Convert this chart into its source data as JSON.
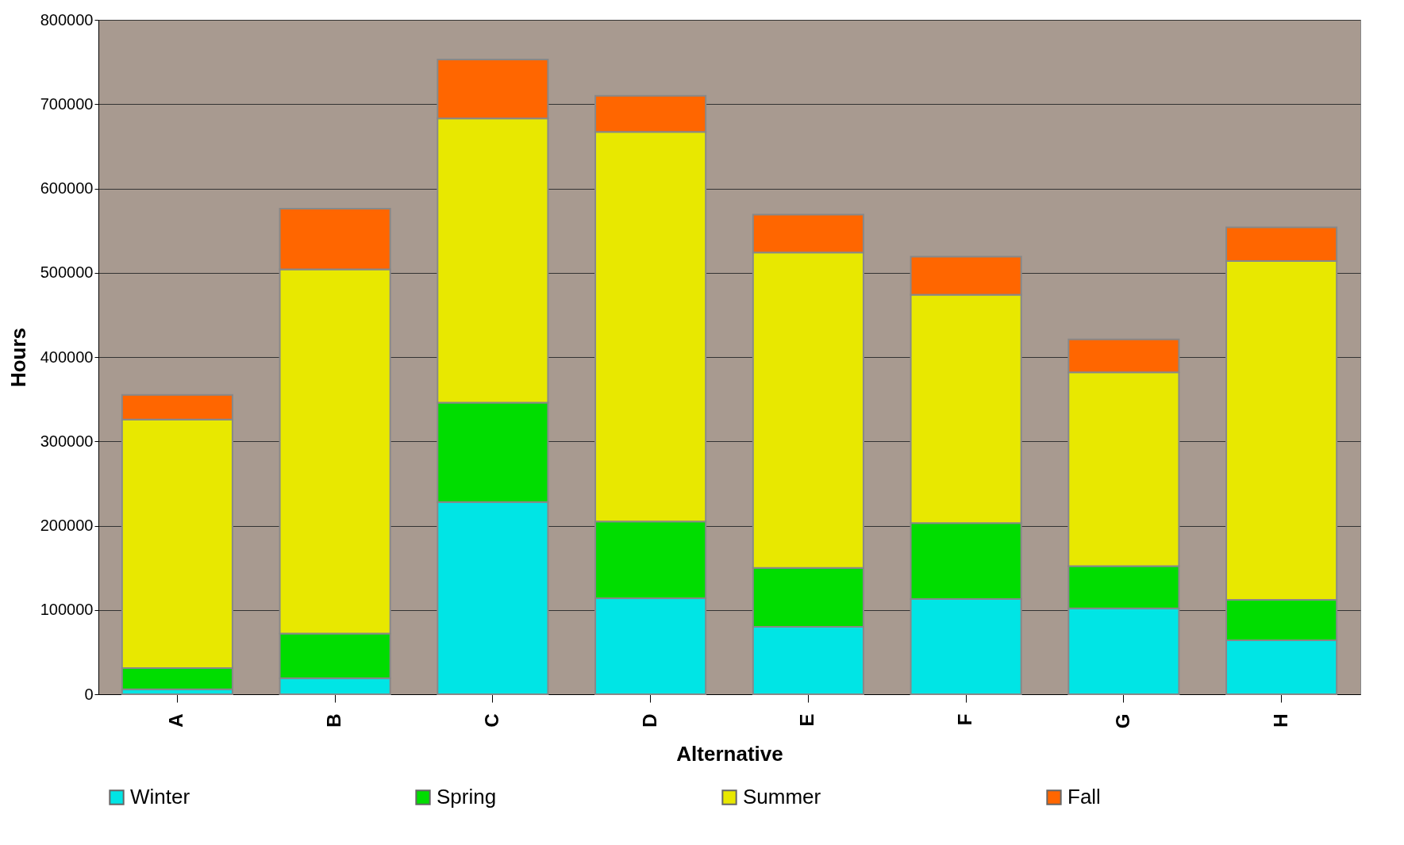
{
  "chart_data": {
    "type": "bar",
    "stacked": true,
    "xlabel": "Alternative",
    "ylabel": "Hours",
    "categories": [
      "A",
      "B",
      "C",
      "D",
      "E",
      "F",
      "G",
      "H"
    ],
    "series": [
      {
        "name": "Winter",
        "color": "#00e5e5",
        "values": [
          6000,
          19000,
          228000,
          114000,
          80000,
          113000,
          102000,
          64000
        ]
      },
      {
        "name": "Spring",
        "color": "#00dd00",
        "values": [
          25000,
          53000,
          118000,
          91000,
          70000,
          90000,
          50000,
          48000
        ]
      },
      {
        "name": "Summer",
        "color": "#e8e800",
        "values": [
          295000,
          432000,
          337000,
          462000,
          374000,
          271000,
          230000,
          402000
        ]
      },
      {
        "name": "Fall",
        "color": "#ff6600",
        "values": [
          29000,
          72000,
          70000,
          43000,
          45000,
          45000,
          39000,
          40000
        ]
      }
    ],
    "ylim": [
      0,
      800000
    ],
    "yticks": [
      0,
      100000,
      200000,
      300000,
      400000,
      500000,
      600000,
      700000,
      800000
    ],
    "grid": "y",
    "legend": "bottom"
  }
}
